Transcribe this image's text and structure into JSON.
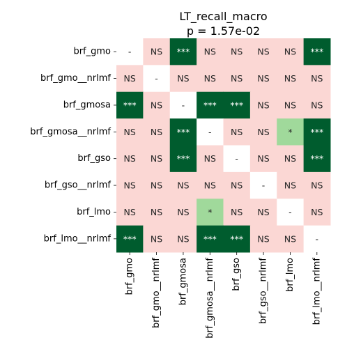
{
  "chart_data": {
    "type": "heatmap",
    "title": "LT_recall_macro",
    "subtitle": "p = 1.57e-02",
    "row_labels": [
      "brf_gmo",
      "brf_gmo__nrlmf",
      "brf_gmosa",
      "brf_gmosa__nrlmf",
      "brf_gso",
      "brf_gso__nrlmf",
      "brf_lmo",
      "brf_lmo__nrlmf"
    ],
    "col_labels": [
      "brf_gmo",
      "brf_gmo__nrlmf",
      "brf_gmosa",
      "brf_gmosa__nrlmf",
      "brf_gso",
      "brf_gso__nrlmf",
      "brf_lmo",
      "brf_lmo__nrlmf"
    ],
    "cells": [
      [
        "-",
        "NS",
        "***",
        "NS",
        "NS",
        "NS",
        "NS",
        "***"
      ],
      [
        "NS",
        "-",
        "NS",
        "NS",
        "NS",
        "NS",
        "NS",
        "NS"
      ],
      [
        "***",
        "NS",
        "-",
        "***",
        "***",
        "NS",
        "NS",
        "NS"
      ],
      [
        "NS",
        "NS",
        "***",
        "-",
        "NS",
        "NS",
        "*",
        "***"
      ],
      [
        "NS",
        "NS",
        "***",
        "NS",
        "-",
        "NS",
        "NS",
        "***"
      ],
      [
        "NS",
        "NS",
        "NS",
        "NS",
        "NS",
        "-",
        "NS",
        "NS"
      ],
      [
        "NS",
        "NS",
        "NS",
        "*",
        "NS",
        "NS",
        "-",
        "NS"
      ],
      [
        "***",
        "NS",
        "NS",
        "***",
        "***",
        "NS",
        "NS",
        "-"
      ]
    ],
    "colors": {
      "NS": "#fbd7d4",
      "*": "#a0d99b",
      "***": "#005c2e",
      "-": "#ffffff"
    },
    "text_colors": {
      "NS": "#262626",
      "*": "#262626",
      "***": "#ffffff",
      "-": "#262626"
    },
    "legend": "none",
    "grid": false
  }
}
